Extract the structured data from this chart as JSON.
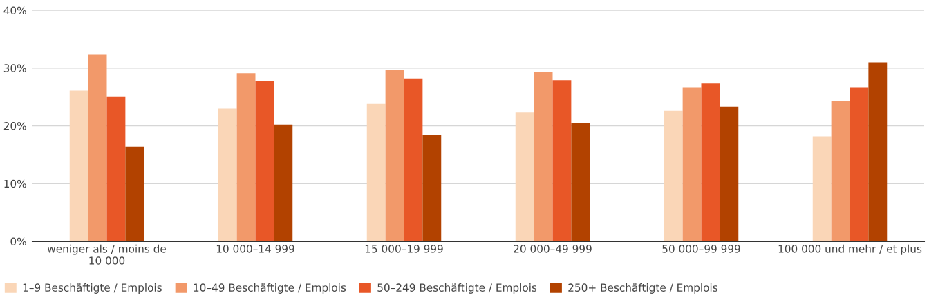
{
  "chart_data": {
    "type": "bar",
    "categories": [
      "weniger als / moins de\n10 000",
      "10 000–14 999",
      "15 000–19 999",
      "20 000–49 999",
      "50 000–99 999",
      "100 000 und mehr / et plus"
    ],
    "series": [
      {
        "name": "1–9 Beschäftigte / Emplois",
        "color": "#fad6b7",
        "values": [
          26.1,
          23.0,
          23.8,
          22.3,
          22.6,
          18.1
        ]
      },
      {
        "name": "10–49 Beschäftigte / Emplois",
        "color": "#f2996a",
        "values": [
          32.3,
          29.1,
          29.6,
          29.3,
          26.7,
          24.3
        ]
      },
      {
        "name": "50–249 Beschäftigte / Emplois",
        "color": "#e85727",
        "values": [
          25.1,
          27.8,
          28.2,
          27.9,
          27.3,
          26.7
        ]
      },
      {
        "name": "250+ Beschäftigte / Emplois",
        "color": "#b24200",
        "values": [
          16.4,
          20.2,
          18.4,
          20.5,
          23.3,
          31.0
        ]
      }
    ],
    "ylim": [
      0,
      40
    ],
    "yticks": [
      {
        "value": 0,
        "label": "0%"
      },
      {
        "value": 10,
        "label": "10%"
      },
      {
        "value": 20,
        "label": "20%"
      },
      {
        "value": 30,
        "label": "30%"
      },
      {
        "value": 40,
        "label": "40%"
      }
    ],
    "grid": "y",
    "legend": "bottom left"
  }
}
